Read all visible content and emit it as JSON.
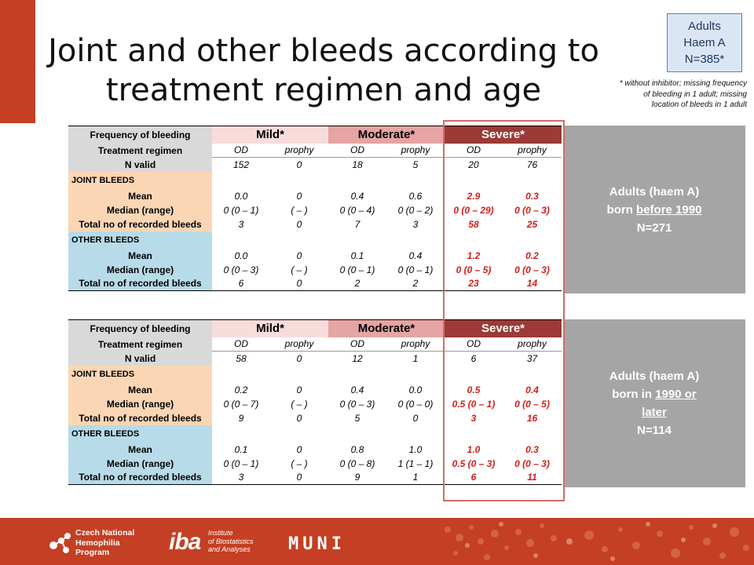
{
  "badge": {
    "line1": "Adults",
    "line2": "Haem A",
    "line3": "N=385*"
  },
  "title": {
    "line1": "Joint and other bleeds according to",
    "line2": "treatment regimen and age"
  },
  "footnote": {
    "line1": "* without inhibitor; missing frequency",
    "line2": "of bleeding in 1 adult; missing",
    "line3": "location of bleeds in 1 adult"
  },
  "labels": {
    "frequency": "Frequency of bleeding",
    "mild": "Mild*",
    "moderate": "Moderate*",
    "severe": "Severe*",
    "regimen": "Treatment regimen",
    "od": "OD",
    "prophy": "prophy",
    "nvalid": "N valid",
    "joint": "JOINT BLEEDS",
    "other": "OTHER  BLEEDS",
    "mean": "Mean",
    "median": "Median (range)",
    "total": "Total no of recorded bleeds"
  },
  "table1": {
    "nvalid": [
      "152",
      "0",
      "18",
      "5",
      "20",
      "76"
    ],
    "joint_mean": [
      "0.0",
      "0",
      "0.4",
      "0.6",
      "2.9",
      "0.3"
    ],
    "joint_median": [
      "0 (0 – 1)",
      "( – )",
      "0 (0 – 4)",
      "0 (0 – 2)",
      "0 (0 – 29)",
      "0 (0 – 3)"
    ],
    "joint_total": [
      "3",
      "0",
      "7",
      "3",
      "58",
      "25"
    ],
    "other_mean": [
      "0.0",
      "0",
      "0.1",
      "0.4",
      "1.2",
      "0.2"
    ],
    "other_median": [
      "0 (0 – 3)",
      "( – )",
      "0 (0 – 1)",
      "0 (0 – 1)",
      "0 (0 – 5)",
      "0 (0 – 3)"
    ],
    "other_total": [
      "6",
      "0",
      "2",
      "2",
      "23",
      "14"
    ],
    "side": {
      "line1": "Adults (haem A)",
      "line2a": "born ",
      "line2b": "before 1990",
      "line3": "N=271"
    }
  },
  "table2": {
    "nvalid": [
      "58",
      "0",
      "12",
      "1",
      "6",
      "37"
    ],
    "joint_mean": [
      "0.2",
      "0",
      "0.4",
      "0.0",
      "0.5",
      "0.4"
    ],
    "joint_median": [
      "0 (0 – 7)",
      "( – )",
      "0 (0 – 3)",
      "0 (0 – 0)",
      "0.5 (0 – 1)",
      "0 (0 – 5)"
    ],
    "joint_total": [
      "9",
      "0",
      "5",
      "0",
      "3",
      "16"
    ],
    "other_mean": [
      "0.1",
      "0",
      "0.8",
      "1.0",
      "1.0",
      "0.3"
    ],
    "other_median": [
      "0 (0 – 1)",
      "( – )",
      "0 (0 – 8)",
      "1 (1 – 1)",
      "0.5 (0 – 3)",
      "0 (0 – 3)"
    ],
    "other_total": [
      "3",
      "0",
      "9",
      "1",
      "6",
      "11"
    ],
    "side": {
      "line1": "Adults (haem A)",
      "line2a": "born in ",
      "line2b": "1990 or",
      "line3": "later",
      "line4": "N=114"
    }
  },
  "footer": {
    "cnhp": {
      "line1": "Czech National",
      "line2": "Hemophilia",
      "line3": "Program"
    },
    "iba": {
      "mark": "iba",
      "line1": "Institute",
      "line2": "of Biostatistics",
      "line3": "and Analyses"
    },
    "muni": "MUNI"
  },
  "colors": {
    "accent": "#c43f23",
    "severe": "#9b3a36",
    "moderate": "#e6a4a2",
    "mild": "#f8dcdc",
    "joint": "#fbd6b5",
    "other": "#b7dbe8",
    "red_values": "#d0201c"
  }
}
